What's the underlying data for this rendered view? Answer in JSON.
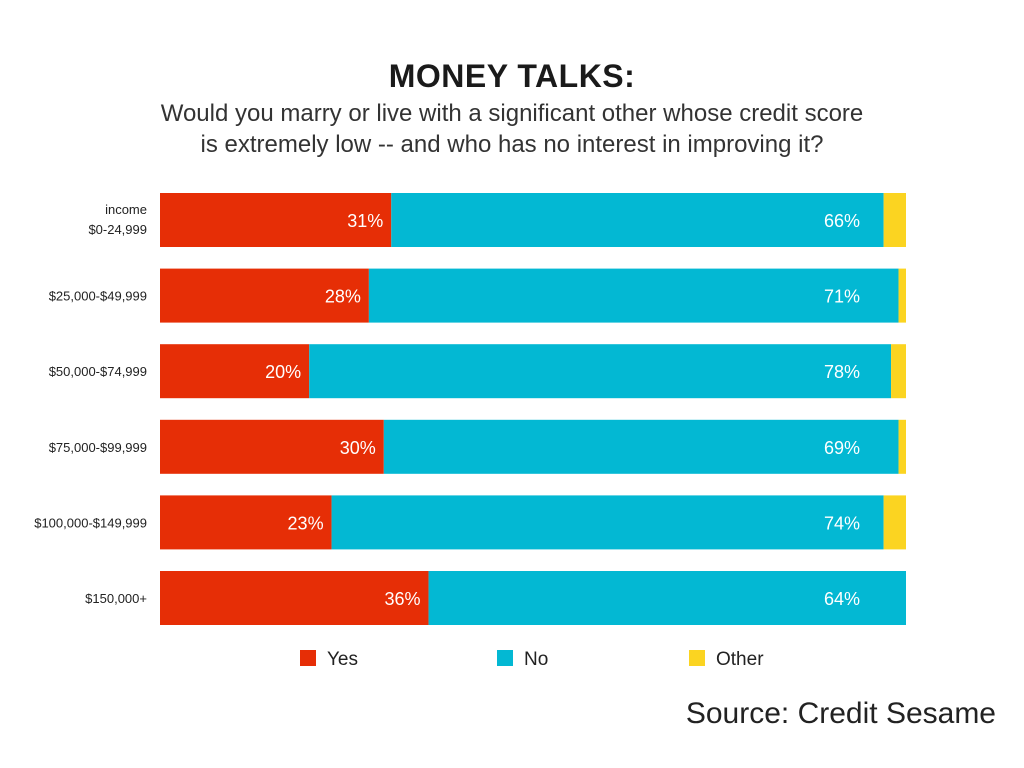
{
  "chart_data": {
    "type": "bar",
    "orientation": "horizontal",
    "stacked": true,
    "title": "MONEY TALKS:",
    "subtitle": [
      "Would you marry or live with a significant other whose credit score",
      "is extremely low -- and who has no interest in improving it?"
    ],
    "axis_label": "income",
    "categories": [
      "$0-24,999",
      "$25,000-$49,999",
      "$50,000-$74,999",
      "$75,000-$99,999",
      "$100,000-$149,999",
      "$150,000+"
    ],
    "series": [
      {
        "name": "Yes",
        "color": "#E62E06",
        "values": [
          31,
          28,
          20,
          30,
          23,
          36
        ]
      },
      {
        "name": "No",
        "color": "#03B8D3",
        "values": [
          66,
          71,
          78,
          69,
          74,
          64
        ]
      },
      {
        "name": "Other",
        "color": "#FBD421",
        "values": [
          3,
          1,
          2,
          1,
          3,
          0
        ]
      }
    ],
    "data_labels": {
      "Yes": [
        "31%",
        "28%",
        "20%",
        "30%",
        "23%",
        "36%"
      ],
      "No": [
        "66%",
        "71%",
        "78%",
        "69%",
        "74%",
        "64%"
      ]
    },
    "xlim": [
      0,
      100
    ],
    "grid": false,
    "legend_position": "bottom"
  },
  "source": "Source: Credit Sesame"
}
